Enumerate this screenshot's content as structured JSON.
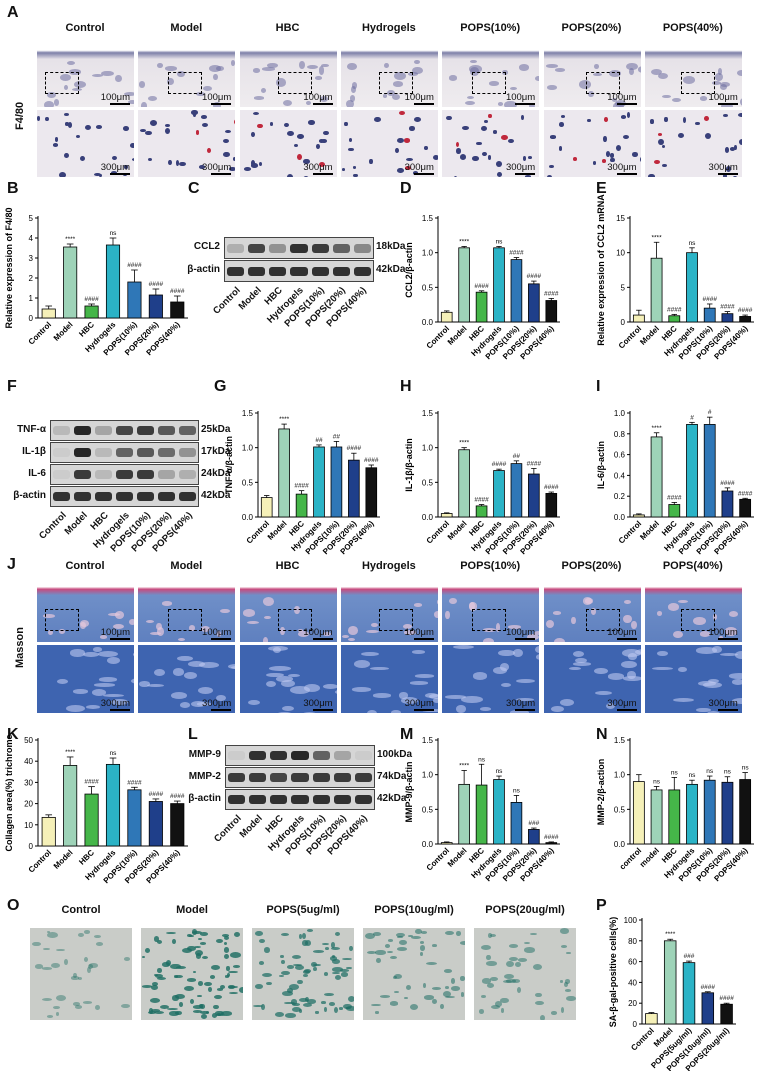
{
  "histology_F480": {
    "panel": "A",
    "row_label": "F4/80",
    "groups": [
      "Control",
      "Model",
      "HBC",
      "Hydrogels",
      "POPS(10%)",
      "POPS(20%)",
      "POPS(40%)"
    ],
    "scale_top": "100μm",
    "scale_bottom": "300μm"
  },
  "histology_masson": {
    "panel": "J",
    "row_label": "Masson",
    "groups": [
      "Control",
      "Model",
      "HBC",
      "Hydrogels",
      "POPS(10%)",
      "POPS(20%)",
      "POPS(40%)"
    ],
    "scale_top": "100μm",
    "scale_bottom": "300μm"
  },
  "blot_C": {
    "panel": "C",
    "rows": [
      "CCL2",
      "β-actin"
    ],
    "sizes": [
      "18kDa",
      "42kDa"
    ],
    "lanes": [
      "Control",
      "Model",
      "HBC",
      "Hydrogels",
      "POPS(10%)",
      "POPS(20%)",
      "POPS(40%)"
    ]
  },
  "blot_F": {
    "panel": "F",
    "rows": [
      "TNF-α",
      "IL-1β",
      "IL-6",
      "β-actin"
    ],
    "sizes": [
      "25kDa",
      "17kDa",
      "24kDa",
      "42kDa"
    ],
    "lanes": [
      "Control",
      "Model",
      "HBC",
      "Hydrogels",
      "POPS(10%)",
      "POPS(20%)",
      "POPS(40%)"
    ]
  },
  "blot_L": {
    "panel": "L",
    "rows": [
      "MMP-9",
      "MMP-2",
      "β-actin"
    ],
    "sizes": [
      "100kDa",
      "74kDa",
      "42kDa"
    ],
    "lanes": [
      "Control",
      "Model",
      "HBC",
      "Hydrogels",
      "POPS(10%)",
      "POPS(20%)",
      "POPS(40%)"
    ]
  },
  "senescence_O": {
    "panel": "O",
    "groups": [
      "Control",
      "Model",
      "POPS(5ug/ml)",
      "POPS(10ug/ml)",
      "POPS(20ug/ml)"
    ]
  },
  "colors": {
    "Control": "#f5f0b8",
    "Model": "#9ed3b8",
    "HBC": "#45b649",
    "Hydrogels": "#2bb3c6",
    "POPS(10%)": "#2f77b7",
    "POPS(20%)": "#1f3f8a",
    "POPS(40%)": "#111111",
    "POPS(5ug/ml)": "#2bb3c6",
    "POPS(10ug/ml)": "#1f3f8a",
    "POPS(20ug/ml)": "#111111"
  },
  "chart_data": [
    {
      "id": "B",
      "type": "bar",
      "ylabel": "Relative expression of  F4/80",
      "ylim": [
        0,
        5
      ],
      "yticks": [
        0,
        1,
        2,
        3,
        4,
        5
      ],
      "categories": [
        "Control",
        "Model",
        "HBC",
        "Hydrogels",
        "POPS(10%)",
        "POPS(20%)",
        "POPS(40%)"
      ],
      "values": [
        0.45,
        3.55,
        0.6,
        3.65,
        1.8,
        1.15,
        0.8
      ],
      "errors": [
        0.15,
        0.15,
        0.1,
        0.35,
        0.6,
        0.3,
        0.3
      ],
      "annotations": [
        "",
        "****",
        "####",
        "ns",
        "####",
        "####",
        "####"
      ]
    },
    {
      "id": "D",
      "type": "bar",
      "ylabel": "CCL2/β-actin",
      "ylim": [
        0,
        1.5
      ],
      "yticks": [
        0.0,
        0.5,
        1.0,
        1.5
      ],
      "categories": [
        "Control",
        "Model",
        "HBC",
        "Hydrogels",
        "POPS(10%)",
        "POPS(20%)",
        "POPS(40%)"
      ],
      "values": [
        0.14,
        1.07,
        0.43,
        1.07,
        0.9,
        0.55,
        0.31
      ],
      "errors": [
        0.02,
        0.02,
        0.02,
        0.02,
        0.03,
        0.04,
        0.03
      ],
      "annotations": [
        "",
        "****",
        "####",
        "ns",
        "####",
        "####",
        "####"
      ]
    },
    {
      "id": "E",
      "type": "bar",
      "ylabel": "Relative expression of  CCL2 mRNA",
      "ylim": [
        0,
        15
      ],
      "yticks": [
        0,
        5,
        10,
        15
      ],
      "categories": [
        "Control",
        "Model",
        "HBC",
        "Hydrogels",
        "POPS(10%)",
        "POPS(20%)",
        "POPS(40%)"
      ],
      "values": [
        1.0,
        9.2,
        0.9,
        10.0,
        2.0,
        1.2,
        0.8
      ],
      "errors": [
        0.7,
        2.3,
        0.2,
        0.7,
        0.6,
        0.3,
        0.2
      ],
      "annotations": [
        "",
        "****",
        "####",
        "ns",
        "####",
        "####",
        "####"
      ]
    },
    {
      "id": "G",
      "type": "bar",
      "ylabel": "TNF-α/β-actin",
      "ylim": [
        0,
        1.5
      ],
      "yticks": [
        0.0,
        0.5,
        1.0,
        1.5
      ],
      "categories": [
        "Control",
        "Model",
        "HBC",
        "Hydrogels",
        "POPS(10%)",
        "POPS(20%)",
        "POPS(40%)"
      ],
      "values": [
        0.28,
        1.27,
        0.33,
        1.01,
        1.01,
        0.82,
        0.71
      ],
      "errors": [
        0.03,
        0.07,
        0.05,
        0.03,
        0.08,
        0.1,
        0.04
      ],
      "annotations": [
        "",
        "****",
        "####",
        "##",
        "##",
        "####",
        "####"
      ]
    },
    {
      "id": "H",
      "type": "bar",
      "ylabel": "IL-1β/β-actin",
      "ylim": [
        0,
        1.5
      ],
      "yticks": [
        0.0,
        0.5,
        1.0,
        1.5
      ],
      "categories": [
        "Control",
        "Model",
        "HBC",
        "Hydrogels",
        "POPS(10%)",
        "POPS(20%)",
        "POPS(40%)"
      ],
      "values": [
        0.05,
        0.97,
        0.16,
        0.67,
        0.77,
        0.62,
        0.34
      ],
      "errors": [
        0.01,
        0.03,
        0.02,
        0.02,
        0.04,
        0.08,
        0.02
      ],
      "annotations": [
        "",
        "****",
        "####",
        "####",
        "##",
        "####",
        "####"
      ]
    },
    {
      "id": "I",
      "type": "bar",
      "ylabel": "IL-6/β-actin",
      "ylim": [
        0,
        1.0
      ],
      "yticks": [
        0.0,
        0.2,
        0.4,
        0.6,
        0.8,
        1.0
      ],
      "categories": [
        "Control",
        "Model",
        "HBC",
        "Hydrogels",
        "POPS(10%)",
        "POPS(20%)",
        "POPS(40%)"
      ],
      "values": [
        0.02,
        0.77,
        0.12,
        0.89,
        0.89,
        0.25,
        0.17
      ],
      "errors": [
        0.01,
        0.04,
        0.02,
        0.02,
        0.07,
        0.03,
        0.01
      ],
      "annotations": [
        "",
        "****",
        "####",
        "#",
        "#",
        "####",
        "####"
      ]
    },
    {
      "id": "K",
      "type": "bar",
      "ylabel": "Collagen area(%) trichrome",
      "ylim": [
        0,
        50
      ],
      "yticks": [
        0,
        10,
        20,
        30,
        40,
        50
      ],
      "categories": [
        "Control",
        "Model",
        "HBC",
        "Hydrogels",
        "POPS(10%)",
        "POPS(20%)",
        "POPS(40%)"
      ],
      "values": [
        13.5,
        38,
        24.5,
        38.5,
        26.5,
        21,
        20
      ],
      "errors": [
        1.2,
        4,
        3.5,
        3,
        1.2,
        1.2,
        1.2
      ],
      "annotations": [
        "",
        "****",
        "####",
        "ns",
        "####",
        "####",
        "####"
      ]
    },
    {
      "id": "M",
      "type": "bar",
      "ylabel": "MMP-9/β-actin",
      "ylim": [
        0,
        1.5
      ],
      "yticks": [
        0.0,
        0.5,
        1.0,
        1.5
      ],
      "categories": [
        "Control",
        "Model",
        "HBC",
        "Hydrogels",
        "POPS(10%)",
        "POPS(20%)",
        "POPS(40%)"
      ],
      "values": [
        0.02,
        0.86,
        0.85,
        0.93,
        0.6,
        0.21,
        0.02
      ],
      "errors": [
        0.01,
        0.2,
        0.3,
        0.05,
        0.1,
        0.02,
        0.01
      ],
      "annotations": [
        "",
        "****",
        "ns",
        "ns",
        "ns",
        "###",
        "####"
      ]
    },
    {
      "id": "N",
      "type": "bar",
      "ylabel": "MMP-2/β-action",
      "ylim": [
        0,
        1.5
      ],
      "yticks": [
        0.0,
        0.5,
        1.0,
        1.5
      ],
      "categories": [
        "control",
        "model",
        "HBC",
        "Hydrogels",
        "POPS(10%)",
        "POPS(20%)",
        "POPS(40%)"
      ],
      "values": [
        0.9,
        0.78,
        0.78,
        0.86,
        0.92,
        0.89,
        0.93
      ],
      "errors": [
        0.1,
        0.05,
        0.18,
        0.06,
        0.06,
        0.08,
        0.1
      ],
      "annotations": [
        "",
        "ns",
        "ns",
        "ns",
        "ns",
        "ns",
        "ns"
      ]
    },
    {
      "id": "P",
      "type": "bar",
      "ylabel": "SA-β-gal-positive cells(%)",
      "ylim": [
        0,
        100
      ],
      "yticks": [
        0,
        20,
        40,
        60,
        80,
        100
      ],
      "categories": [
        "Control",
        "Model",
        "POPS(5ug/ml)",
        "POPS(10ug/ml)",
        "POPS(20ug/ml)"
      ],
      "values": [
        10,
        80,
        59,
        30,
        19
      ],
      "errors": [
        1,
        1.5,
        1.5,
        1,
        1
      ],
      "annotations": [
        "",
        "****",
        "###",
        "####",
        "####"
      ]
    }
  ]
}
